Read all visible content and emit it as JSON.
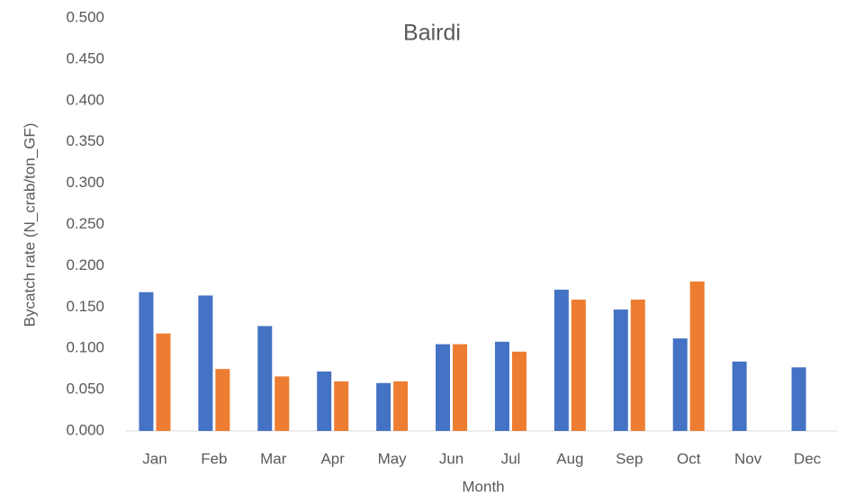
{
  "chart_data": {
    "type": "bar",
    "title": "Bairdi",
    "x_label": "Month",
    "y_label": "Bycatch rate (N_crab/ton_GF)",
    "categories": [
      "Jan",
      "Feb",
      "Mar",
      "Apr",
      "May",
      "Jun",
      "Jul",
      "Aug",
      "Sep",
      "Oct",
      "Nov",
      "Dec"
    ],
    "series": [
      {
        "color": "#4472c4",
        "values": [
          0.168,
          0.164,
          0.127,
          0.072,
          0.058,
          0.105,
          0.108,
          0.171,
          0.147,
          0.112,
          0.084,
          0.077
        ]
      },
      {
        "color": "#ed7d31",
        "values": [
          0.118,
          0.075,
          0.066,
          0.06,
          0.06,
          0.105,
          0.096,
          0.159,
          0.159,
          0.181,
          null,
          null
        ]
      }
    ],
    "ylim": [
      0,
      0.5
    ],
    "yticks": [
      {
        "value": 0,
        "label": "0.000"
      },
      {
        "value": 0.05,
        "label": "0.050"
      },
      {
        "value": 0.1,
        "label": "0.100"
      },
      {
        "value": 0.15,
        "label": "0.150"
      },
      {
        "value": 0.2,
        "label": "0.200"
      },
      {
        "value": 0.25,
        "label": "0.250"
      },
      {
        "value": 0.3,
        "label": "0.300"
      },
      {
        "value": 0.35,
        "label": "0.350"
      },
      {
        "value": 0.4,
        "label": "0.400"
      },
      {
        "value": 0.45,
        "label": "0.450"
      },
      {
        "value": 0.5,
        "label": "0.500"
      }
    ],
    "grid": false
  }
}
